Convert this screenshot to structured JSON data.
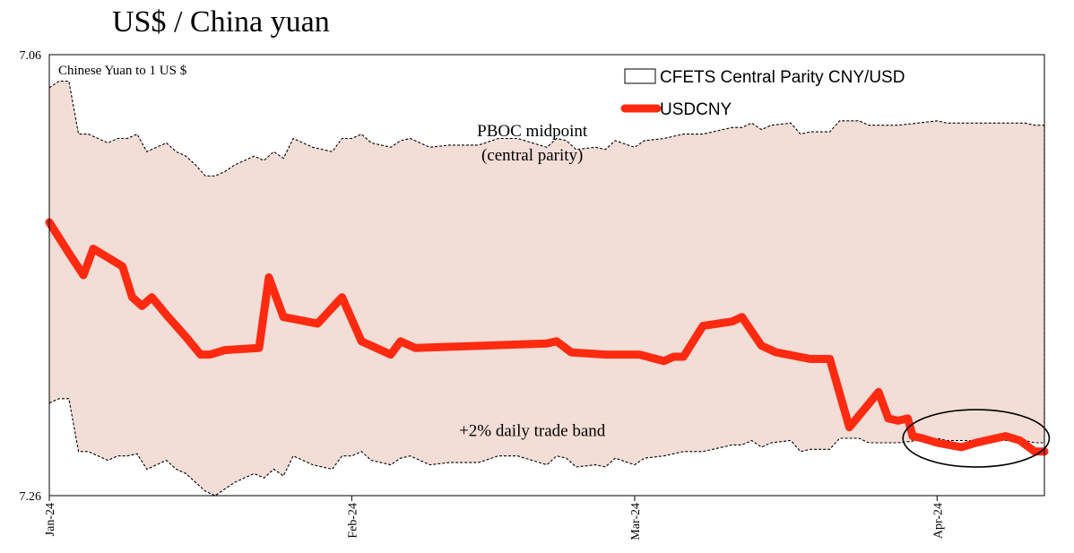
{
  "title": "US$ / China yuan",
  "chart_data": {
    "type": "line",
    "units_label": "Chinese Yuan to 1 US $",
    "y_axis": {
      "top_label": "7.06",
      "bottom_label": "7.26",
      "min": 7.06,
      "max": 7.26,
      "inverted": true
    },
    "x_axis": {
      "ticks": [
        {
          "label": "Jan-24",
          "x": 0
        },
        {
          "label": "Feb-24",
          "x": 31
        },
        {
          "label": "Mar-24",
          "x": 60
        },
        {
          "label": "Apr-24",
          "x": 91
        }
      ],
      "min": 0,
      "max": 102
    },
    "series": [
      {
        "name": "USDCNY",
        "color": "#ff2a10",
        "x": [
          0,
          1,
          2,
          3.5,
          4.5,
          6,
          7.5,
          8.5,
          9.5,
          10.5,
          12,
          14,
          15.5,
          16.5,
          18,
          21.5,
          22.5,
          24,
          27.5,
          30,
          32,
          35,
          36,
          37.5,
          51,
          52,
          53.5,
          57,
          58,
          59,
          60.5,
          63,
          64,
          65,
          67,
          70,
          71,
          73,
          74.5,
          78,
          80,
          82,
          85,
          86,
          87,
          88,
          88.5,
          89.5,
          91,
          93.5,
          95,
          98,
          99.5,
          101,
          102
        ],
        "y": [
          7.136,
          7.143,
          7.15,
          7.16,
          7.148,
          7.152,
          7.156,
          7.17,
          7.174,
          7.17,
          7.178,
          7.188,
          7.196,
          7.196,
          7.194,
          7.193,
          7.161,
          7.179,
          7.182,
          7.17,
          7.19,
          7.196,
          7.19,
          7.193,
          7.191,
          7.19,
          7.195,
          7.196,
          7.196,
          7.196,
          7.196,
          7.199,
          7.197,
          7.197,
          7.183,
          7.181,
          7.179,
          7.192,
          7.195,
          7.198,
          7.198,
          7.229,
          7.213,
          7.225,
          7.226,
          7.225,
          7.233,
          7.234,
          7.236,
          7.238,
          7.236,
          7.233,
          7.235,
          7.24,
          7.24
        ]
      },
      {
        "name": "CFETS Central Parity CNY/USD",
        "color": "#000000",
        "x": [
          0,
          1,
          2,
          3,
          4,
          6,
          7,
          8,
          9,
          10,
          12,
          13,
          14,
          15,
          16,
          17,
          18,
          19,
          21,
          22,
          23,
          24,
          25,
          27,
          29,
          30,
          31,
          32,
          33,
          35,
          36,
          37,
          39,
          41,
          42,
          44,
          46,
          48,
          51,
          52,
          53,
          54,
          56,
          57,
          58,
          60,
          61,
          63,
          64,
          65,
          67,
          70,
          71,
          72,
          73,
          74,
          76,
          77,
          78,
          80,
          81,
          83,
          84,
          85,
          87,
          89,
          91,
          92,
          95,
          98,
          100,
          101,
          102
        ],
        "y": [
          7.075,
          7.072,
          7.072,
          7.096,
          7.096,
          7.1,
          7.098,
          7.098,
          7.096,
          7.104,
          7.1,
          7.104,
          7.106,
          7.11,
          7.115,
          7.115,
          7.113,
          7.11,
          7.106,
          7.108,
          7.104,
          7.107,
          7.098,
          7.102,
          7.104,
          7.098,
          7.098,
          7.096,
          7.1,
          7.102,
          7.099,
          7.098,
          7.102,
          7.101,
          7.101,
          7.101,
          7.098,
          7.098,
          7.102,
          7.098,
          7.099,
          7.103,
          7.102,
          7.103,
          7.099,
          7.102,
          7.099,
          7.098,
          7.097,
          7.096,
          7.096,
          7.093,
          7.093,
          7.091,
          7.094,
          7.092,
          7.091,
          7.096,
          7.095,
          7.095,
          7.09,
          7.09,
          7.092,
          7.092,
          7.092,
          7.091,
          7.09,
          7.091,
          7.091,
          7.091,
          7.091,
          7.092,
          7.092
        ]
      }
    ],
    "band_lower": {
      "x": [
        0,
        1,
        2,
        3,
        4,
        6,
        7,
        8,
        9,
        10,
        12,
        13,
        14,
        15,
        16,
        17,
        18,
        19,
        21,
        22,
        23,
        24,
        25,
        27,
        29,
        30,
        31,
        32,
        33,
        35,
        36,
        37,
        39,
        41,
        42,
        44,
        46,
        48,
        51,
        52,
        53,
        54,
        56,
        57,
        58,
        60,
        61,
        63,
        64,
        65,
        67,
        70,
        71,
        72,
        73,
        74,
        76,
        77,
        78,
        80,
        81,
        83,
        84,
        85,
        87,
        89,
        91,
        92,
        95,
        98,
        100,
        101,
        102
      ],
      "y": [
        7.218,
        7.216,
        7.216,
        7.24,
        7.24,
        7.244,
        7.242,
        7.242,
        7.241,
        7.248,
        7.244,
        7.248,
        7.25,
        7.254,
        7.258,
        7.26,
        7.257,
        7.254,
        7.25,
        7.252,
        7.248,
        7.251,
        7.242,
        7.246,
        7.248,
        7.242,
        7.242,
        7.24,
        7.244,
        7.246,
        7.243,
        7.242,
        7.246,
        7.245,
        7.245,
        7.245,
        7.242,
        7.242,
        7.246,
        7.242,
        7.243,
        7.247,
        7.246,
        7.247,
        7.243,
        7.246,
        7.243,
        7.242,
        7.241,
        7.24,
        7.24,
        7.237,
        7.237,
        7.235,
        7.238,
        7.236,
        7.235,
        7.24,
        7.239,
        7.239,
        7.234,
        7.234,
        7.236,
        7.236,
        7.236,
        7.235,
        7.234,
        7.235,
        7.235,
        7.235,
        7.235,
        7.236,
        7.236
      ]
    },
    "band_fill_color": "#f2ddd7",
    "annotations": [
      {
        "text": "PBOC midpoint",
        "x": 49.5,
        "y": 7.097
      },
      {
        "text": "(central parity)",
        "x": 49.5,
        "y": 7.108
      },
      {
        "text": "+2% daily trade band",
        "x": 49.5,
        "y": 7.233
      }
    ],
    "highlight_ellipse": {
      "x_center": 95.0,
      "y_center": 7.234,
      "rx": 7.5,
      "ry": 0.013,
      "color": "#000000"
    }
  }
}
